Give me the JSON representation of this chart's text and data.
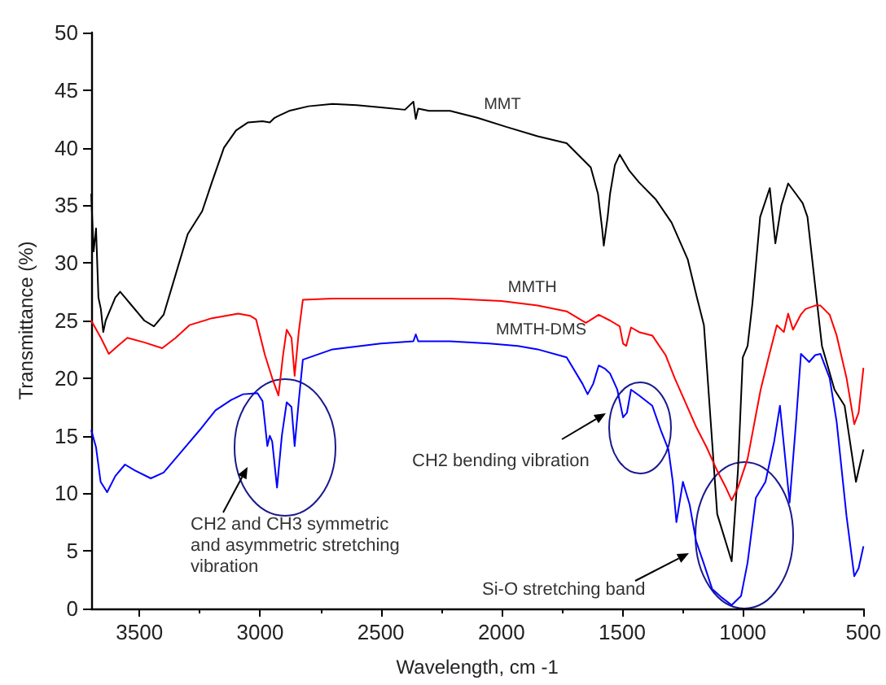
{
  "chart_data": {
    "type": "line",
    "xlabel": "Wavelength, cm -1",
    "ylabel": "Transmittance (%)",
    "xlim": [
      3700,
      500
    ],
    "xticks": [
      3500,
      3000,
      2500,
      2000,
      1500,
      1000,
      500
    ],
    "ylim": [
      0,
      50
    ],
    "yticks": [
      0,
      5,
      10,
      15,
      20,
      25,
      30,
      35,
      40,
      45,
      50
    ],
    "grid": false,
    "legend": false,
    "series": [
      {
        "name": "MMT",
        "color": "#000000",
        "x": [
          3700,
          3690,
          3680,
          3670,
          3660,
          3650,
          3640,
          3620,
          3600,
          3580,
          3560,
          3540,
          3500,
          3480,
          3440,
          3400,
          3350,
          3300,
          3240,
          3200,
          3150,
          3100,
          3050,
          2990,
          2960,
          2940,
          2920,
          2880,
          2800,
          2700,
          2600,
          2500,
          2400,
          2365,
          2355,
          2345,
          2300,
          2213,
          2100,
          1978,
          1850,
          1730,
          1630,
          1600,
          1583,
          1576,
          1560,
          1550,
          1530,
          1510,
          1470,
          1430,
          1360,
          1295,
          1228,
          1190,
          1161,
          1106,
          1046,
          1020,
          1000,
          980,
          960,
          928,
          888,
          865,
          840,
          812,
          780,
          752,
          732,
          700,
          672,
          620,
          578,
          531,
          500
        ],
        "values": [
          36,
          31,
          33,
          27,
          26,
          24,
          25,
          26,
          27,
          27.5,
          27,
          26.5,
          25.5,
          25,
          24.5,
          25.5,
          29,
          32.5,
          34.5,
          37,
          40,
          41.5,
          42.2,
          42.3,
          42.2,
          42.6,
          42.8,
          43.2,
          43.6,
          43.8,
          43.7,
          43.5,
          43.3,
          44,
          42.5,
          43.4,
          43.2,
          43.2,
          42.6,
          41.8,
          41,
          40.4,
          38.3,
          36,
          33,
          31.5,
          34,
          36,
          38.5,
          39.4,
          38,
          37,
          35.5,
          33.5,
          30.3,
          27,
          24.6,
          8.2,
          4.1,
          12,
          21.8,
          22.8,
          26.5,
          34,
          36.5,
          31.7,
          35,
          36.9,
          36,
          35.2,
          34,
          28,
          22.8,
          19,
          17.6,
          11,
          13.8
        ]
      },
      {
        "name": "MMTH",
        "color": "#ff0000",
        "x": [
          3700,
          3660,
          3627,
          3590,
          3550,
          3480,
          3406,
          3350,
          3293,
          3200,
          3091,
          3040,
          3017,
          2980,
          2950,
          2924,
          2905,
          2890,
          2870,
          2857,
          2840,
          2823,
          2700,
          2500,
          2213,
          2000,
          1850,
          1730,
          1650,
          1597,
          1550,
          1510,
          1496,
          1483,
          1463,
          1430,
          1375,
          1320,
          1282,
          1240,
          1194,
          1150,
          1107,
          1070,
          1046,
          1020,
          980,
          926,
          893,
          859,
          830,
          812,
          792,
          760,
          740,
          700,
          678,
          640,
          611,
          570,
          538,
          520,
          500
        ],
        "values": [
          25,
          23.5,
          22.1,
          22.8,
          23.5,
          23.1,
          22.6,
          23.5,
          24.6,
          25.2,
          25.6,
          25.4,
          25.1,
          22,
          20,
          18.5,
          22,
          24.2,
          23.5,
          20.2,
          24,
          26.8,
          26.9,
          26.9,
          26.9,
          26.7,
          26.3,
          25.8,
          24.8,
          25.5,
          25,
          24.5,
          23,
          22.8,
          24.4,
          24,
          23.7,
          22,
          20,
          18,
          15.8,
          14,
          12,
          10.5,
          9.4,
          10.5,
          13,
          19,
          21.8,
          24.6,
          24,
          25.6,
          24.2,
          25.5,
          26,
          26.3,
          26.3,
          25.5,
          23.7,
          20,
          16,
          17,
          20.9
        ]
      },
      {
        "name": "MMTH-DMS",
        "color": "#0000ff",
        "x": [
          3700,
          3680,
          3661,
          3634,
          3600,
          3560,
          3520,
          3453,
          3400,
          3319,
          3250,
          3185,
          3120,
          3071,
          3011,
          2990,
          2970,
          2960,
          2950,
          2930,
          2910,
          2890,
          2870,
          2857,
          2840,
          2823,
          2700,
          2500,
          2365,
          2355,
          2345,
          2213,
          2050,
          1932,
          1850,
          1730,
          1664,
          1643,
          1620,
          1597,
          1570,
          1550,
          1520,
          1496,
          1480,
          1463,
          1430,
          1375,
          1340,
          1308,
          1290,
          1275,
          1248,
          1220,
          1194,
          1160,
          1127,
          1090,
          1046,
          1007,
          980,
          946,
          906,
          870,
          846,
          806,
          780,
          759,
          725,
          700,
          678,
          640,
          611,
          570,
          538,
          520,
          500
        ],
        "values": [
          15.5,
          14,
          11,
          10.1,
          11.5,
          12.5,
          12,
          11.3,
          11.8,
          13.8,
          15.5,
          17.2,
          18.1,
          18.6,
          18.7,
          18,
          14.1,
          15,
          14.5,
          10.5,
          15,
          17.9,
          17.5,
          14.1,
          18,
          21.6,
          22.5,
          23,
          23.2,
          23.8,
          23.2,
          23.2,
          23,
          22.8,
          22.5,
          21.8,
          19.5,
          18.6,
          19.5,
          21.1,
          20.8,
          20.4,
          19,
          16.6,
          17,
          19,
          18.5,
          17.6,
          15.5,
          13.8,
          11,
          7.5,
          11,
          9,
          5.9,
          3.8,
          1.7,
          1,
          0.3,
          1.1,
          4,
          9.6,
          11,
          14.5,
          17.6,
          9.2,
          16,
          22.1,
          21.4,
          22,
          22.1,
          20,
          16.2,
          8,
          2.8,
          3.5,
          5.4
        ]
      }
    ],
    "annotations": [
      "CH2 and CH3 symmetric and asymmetric stretching vibration",
      "CH2 bending vibration",
      "Si-O stretching band"
    ]
  }
}
